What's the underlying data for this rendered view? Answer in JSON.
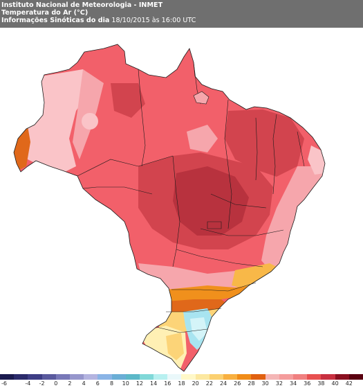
{
  "header": {
    "institute": "Instituto Nacional de Meteorologia - INMET",
    "variable": "Temperatura do Ar (°C)",
    "subtitle_bold": "Informações Sinóticas do dia",
    "subtitle_date": " 18/10/2015 às 16:00 UTC"
  },
  "legend": {
    "ticks": [
      "-6",
      "-4",
      "-2",
      "0",
      "2",
      "4",
      "6",
      "8",
      "10",
      "12",
      "14",
      "16",
      "18",
      "20",
      "22",
      "24",
      "26",
      "28",
      "30",
      "32",
      "34",
      "36",
      "38",
      "40",
      "42"
    ],
    "colors": [
      "#1a1a4e",
      "#2b2b6b",
      "#3d3d85",
      "#5a5a9e",
      "#7878b8",
      "#9696cc",
      "#b4b4e0",
      "#8ab4e6",
      "#6aaed6",
      "#5cb8c8",
      "#80d8d8",
      "#b8f0f0",
      "#eaf8fa",
      "#fff8c8",
      "#fce8a0",
      "#fbd070",
      "#f8b040",
      "#f08c18",
      "#e06010",
      "#f4b6b6",
      "#f49c9c",
      "#f08080",
      "#e85050",
      "#c83040",
      "#8a1020",
      "#5a0010"
    ]
  },
  "map": {
    "colors": {
      "ocean": "#ffffff",
      "hot_base": "#f2606a",
      "very_hot": "#d2444e",
      "hottest": "#b8323e",
      "warm_pink": "#f6a6ac",
      "mild_pink": "#fac4c8",
      "orange_dark": "#e0681a",
      "orange": "#f0901c",
      "light_orange": "#f8b848",
      "yellow": "#fcd478",
      "pale_yellow": "#fff0b4",
      "cyan_pale": "#d4f4f8",
      "cyan": "#a8e4f0",
      "border": "#1a1a1a"
    }
  }
}
